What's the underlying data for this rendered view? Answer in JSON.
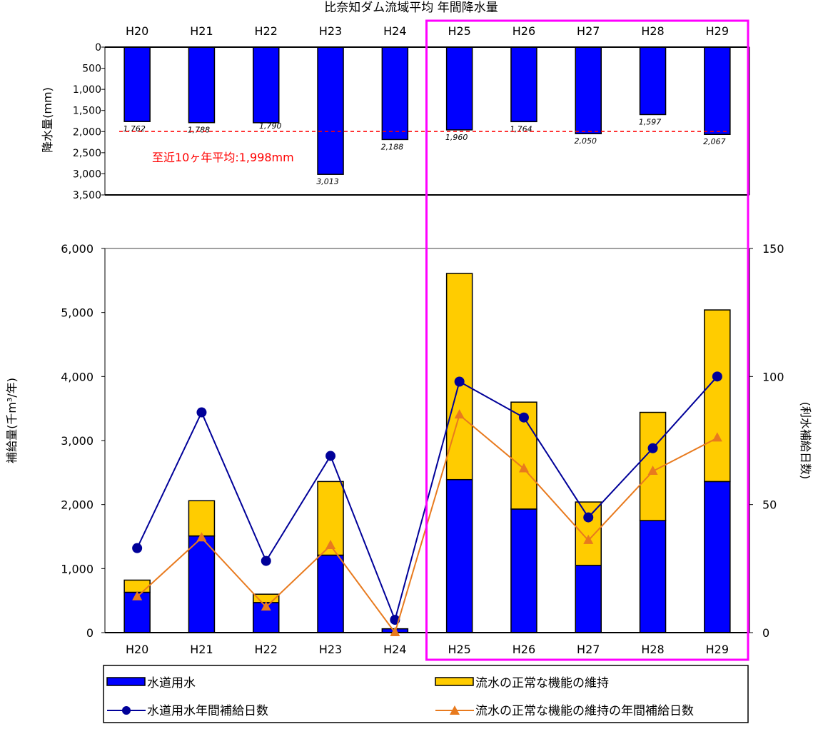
{
  "title": "比奈知ダム流域平均 年間降水量",
  "chart_data": [
    {
      "type": "bar",
      "title": "比奈知ダム流域平均 年間降水量",
      "ylabel": "降水量(mm)",
      "inverted_y": true,
      "ylim": [
        0,
        3500
      ],
      "yticks": [
        0,
        500,
        1000,
        1500,
        2000,
        2500,
        3000,
        3500
      ],
      "ytick_labels": [
        "0",
        "500",
        "1,000",
        "1,500",
        "2,000",
        "2,500",
        "3,000",
        "3,500"
      ],
      "categories": [
        "H20",
        "H21",
        "H22",
        "H23",
        "H24",
        "H25",
        "H26",
        "H27",
        "H28",
        "H29"
      ],
      "values": [
        1762,
        1788,
        1790,
        3013,
        2188,
        1960,
        1764,
        2050,
        1597,
        2067
      ],
      "value_labels": [
        "1,762",
        "1,788",
        "1,790",
        "3,013",
        "2,188",
        "1,960",
        "1,764",
        "2,050",
        "1,597",
        "2,067"
      ],
      "bar_color": "#0000ff",
      "reference_line": {
        "value": 1998,
        "label": "至近10ヶ年平均:1,998mm",
        "color": "#ff0000",
        "style": "dashed"
      }
    },
    {
      "type": "bar",
      "stacked": true,
      "ylabel": "補給量(千m³/年)",
      "y2label": "(利水補給日数)",
      "ylim": [
        0,
        6000
      ],
      "y2lim": [
        0,
        150
      ],
      "yticks": [
        0,
        1000,
        2000,
        3000,
        4000,
        5000,
        6000
      ],
      "ytick_labels": [
        "0",
        "1,000",
        "2,000",
        "3,000",
        "4,000",
        "5,000",
        "6,000"
      ],
      "y2ticks": [
        0,
        50,
        100,
        150
      ],
      "y2tick_labels": [
        "0",
        "50",
        "100",
        "150"
      ],
      "categories": [
        "H20",
        "H21",
        "H22",
        "H23",
        "H24",
        "H25",
        "H26",
        "H27",
        "H28",
        "H29"
      ],
      "series": [
        {
          "name": "水道用水",
          "kind": "bar",
          "axis": "left",
          "color": "#0000ff",
          "values": [
            630,
            1510,
            470,
            1210,
            60,
            2390,
            1930,
            1050,
            1750,
            2360
          ]
        },
        {
          "name": "流水の正常な機能の維持",
          "kind": "bar",
          "axis": "left",
          "color": "#ffcc00",
          "values": [
            190,
            550,
            130,
            1150,
            0,
            3220,
            1670,
            990,
            1690,
            2680
          ]
        },
        {
          "name": "水道用水年間補給日数",
          "kind": "line",
          "marker": "circle",
          "axis": "right",
          "color": "#000099",
          "values": [
            33,
            86,
            28,
            69,
            5,
            98,
            84,
            45,
            72,
            100
          ]
        },
        {
          "name": "流水の正常な機能の維持の年間補給日数",
          "kind": "line",
          "marker": "triangle",
          "axis": "right",
          "color": "#e87a1e",
          "values": [
            14,
            37,
            10,
            34,
            0,
            85,
            64,
            36,
            63,
            76
          ]
        }
      ],
      "highlight_categories": [
        "H25",
        "H29"
      ],
      "highlight_color": "#ff00ff",
      "legend": "bottom"
    }
  ]
}
